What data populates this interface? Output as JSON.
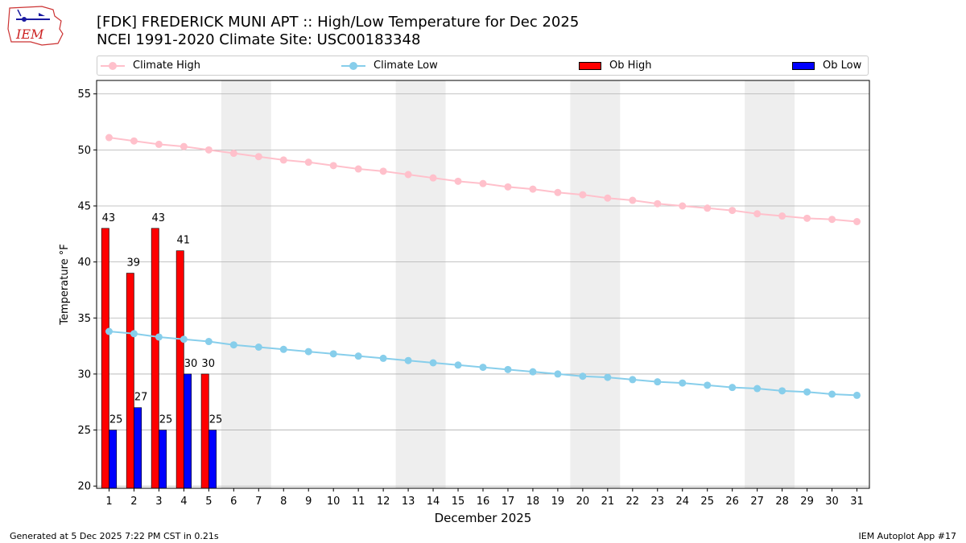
{
  "header": {
    "logo_text": "IEM",
    "title_line1": "[FDK] FREDERICK MUNI APT :: High/Low Temperature for Dec 2025",
    "title_line2": "NCEI 1991-2020 Climate Site: USC00183348"
  },
  "legend": {
    "climate_high": "Climate High",
    "climate_low": "Climate Low",
    "ob_high": "Ob High",
    "ob_low": "Ob Low"
  },
  "footer": {
    "generated": "Generated at 5 Dec 2025 7:22 PM CST in 0.21s",
    "app": "IEM Autoplot App #17"
  },
  "colors": {
    "climate_high": "#ffc0cb",
    "climate_low": "#87ceeb",
    "ob_high": "#ff0000",
    "ob_low": "#0000ff",
    "weekend_shade": "#eeeeee",
    "grid": "#b0b0b0"
  },
  "chart_data": {
    "type": "bar",
    "xlabel": "December 2025",
    "ylabel": "Temperature °F",
    "xlim": [
      0.5,
      31.5
    ],
    "ylim": [
      19.8,
      56.2
    ],
    "yticks": [
      20,
      25,
      30,
      35,
      40,
      45,
      50,
      55
    ],
    "days": [
      1,
      2,
      3,
      4,
      5,
      6,
      7,
      8,
      9,
      10,
      11,
      12,
      13,
      14,
      15,
      16,
      17,
      18,
      19,
      20,
      21,
      22,
      23,
      24,
      25,
      26,
      27,
      28,
      29,
      30,
      31
    ],
    "weekend_spans": [
      [
        5.5,
        7.5
      ],
      [
        12.5,
        14.5
      ],
      [
        19.5,
        21.5
      ],
      [
        26.5,
        28.5
      ]
    ],
    "grid": "horizontal",
    "legend_position": "top",
    "series": [
      {
        "name": "Climate High",
        "kind": "line",
        "values": [
          51.1,
          50.8,
          50.5,
          50.3,
          50.0,
          49.7,
          49.4,
          49.1,
          48.9,
          48.6,
          48.3,
          48.1,
          47.8,
          47.5,
          47.2,
          47.0,
          46.7,
          46.5,
          46.2,
          46.0,
          45.7,
          45.5,
          45.2,
          45.0,
          44.8,
          44.6,
          44.3,
          44.1,
          43.9,
          43.8,
          43.6
        ]
      },
      {
        "name": "Climate Low",
        "kind": "line",
        "values": [
          33.8,
          33.6,
          33.3,
          33.1,
          32.9,
          32.6,
          32.4,
          32.2,
          32.0,
          31.8,
          31.6,
          31.4,
          31.2,
          31.0,
          30.8,
          30.6,
          30.4,
          30.2,
          30.0,
          29.8,
          29.7,
          29.5,
          29.3,
          29.2,
          29.0,
          28.8,
          28.7,
          28.5,
          28.4,
          28.2,
          28.1
        ]
      },
      {
        "name": "Ob High",
        "kind": "bar",
        "values": [
          43,
          39,
          43,
          41,
          30
        ],
        "labels": [
          "43",
          "39",
          "43",
          "41",
          "30"
        ]
      },
      {
        "name": "Ob Low",
        "kind": "bar",
        "values": [
          25,
          27,
          25,
          30,
          25
        ],
        "labels": [
          "25",
          "27",
          "25",
          "30",
          "25"
        ]
      }
    ]
  }
}
